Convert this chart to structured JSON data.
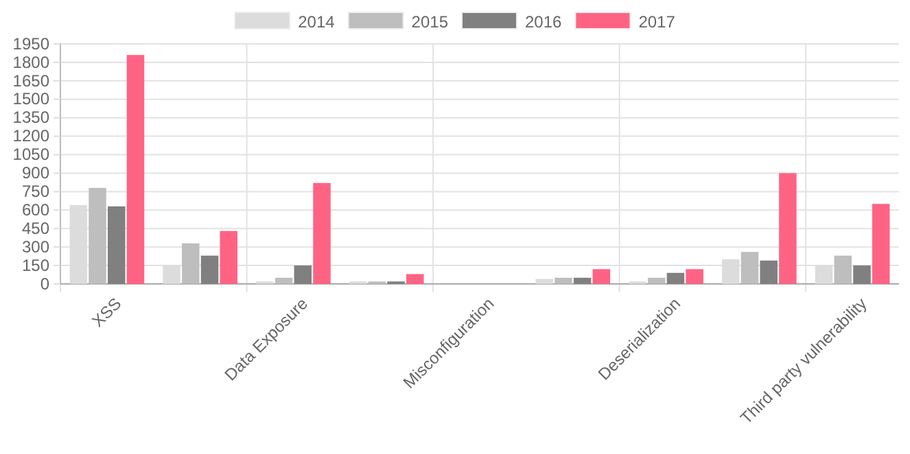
{
  "chart_data": {
    "type": "bar",
    "categories": [
      "XSS",
      null,
      "Data Exposure",
      null,
      "Misconfiguration",
      null,
      "Deserialization",
      null,
      "Third party vulnerability"
    ],
    "series": [
      {
        "name": "2014",
        "color": "#dcdcdc",
        "values": [
          640,
          150,
          20,
          20,
          0,
          40,
          20,
          200,
          150
        ]
      },
      {
        "name": "2015",
        "color": "#bebebe",
        "values": [
          780,
          330,
          50,
          20,
          0,
          50,
          50,
          260,
          230
        ]
      },
      {
        "name": "2016",
        "color": "#808080",
        "values": [
          630,
          230,
          150,
          20,
          0,
          50,
          90,
          190,
          150
        ]
      },
      {
        "name": "2017",
        "color": "#ff6384",
        "values": [
          1860,
          430,
          820,
          80,
          0,
          120,
          120,
          900,
          650
        ]
      }
    ],
    "ylim": [
      0,
      1950
    ],
    "yticks": [
      0,
      150,
      300,
      450,
      600,
      750,
      900,
      1050,
      1200,
      1350,
      1500,
      1650,
      1800,
      1950
    ],
    "grid": true,
    "legend": "top"
  }
}
